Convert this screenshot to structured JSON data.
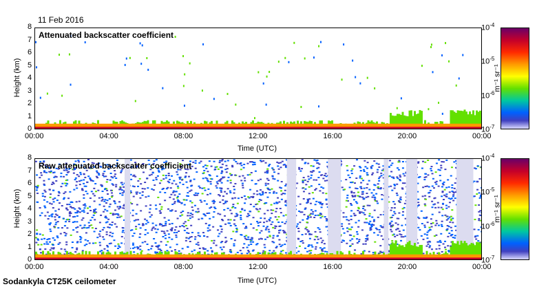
{
  "header": {
    "date": "11 Feb 2016"
  },
  "footer": {
    "instrument": "Sodankyla CT25K ceilometer"
  },
  "colorbar": {
    "tick_labels": [
      "10",
      "10",
      "10",
      "10"
    ],
    "tick_exponents": [
      "-4",
      "-5",
      "-6",
      "-7"
    ],
    "unit_label": "m⁻¹ sr⁻¹"
  },
  "colors": {
    "layer_ground": "#c4002a",
    "layer_mid": "#ff9a00",
    "layer_low": "#63e000",
    "noise": "#0060ff",
    "sparse": "#4040c0"
  },
  "chart_data": [
    {
      "type": "heatmap",
      "title": "Attenuated backscatter coefficient",
      "xlabel": "Time (UTC)",
      "ylabel": "Height (km)",
      "x_ticks": [
        "00:00",
        "04:00",
        "08:00",
        "12:00",
        "16:00",
        "20:00",
        "00:00"
      ],
      "y_ticks": [
        "0",
        "1",
        "2",
        "3",
        "4",
        "5",
        "6",
        "7",
        "8"
      ],
      "xlim": [
        0,
        24
      ],
      "ylim": [
        0,
        8
      ],
      "color_scale": {
        "min": 1e-07,
        "max": 0.0001,
        "log": true
      }
    },
    {
      "type": "heatmap",
      "title": "Raw attenuated backscatter coefficient",
      "xlabel": "Time (UTC)",
      "ylabel": "Height (km)",
      "x_ticks": [
        "00:00",
        "04:00",
        "08:00",
        "12:00",
        "16:00",
        "20:00",
        "00:00"
      ],
      "y_ticks": [
        "0",
        "1",
        "2",
        "3",
        "4",
        "5",
        "6",
        "7",
        "8"
      ],
      "xlim": [
        0,
        24
      ],
      "ylim": [
        0,
        8
      ],
      "color_scale": {
        "min": 1e-07,
        "max": 0.0001,
        "log": true
      }
    }
  ]
}
